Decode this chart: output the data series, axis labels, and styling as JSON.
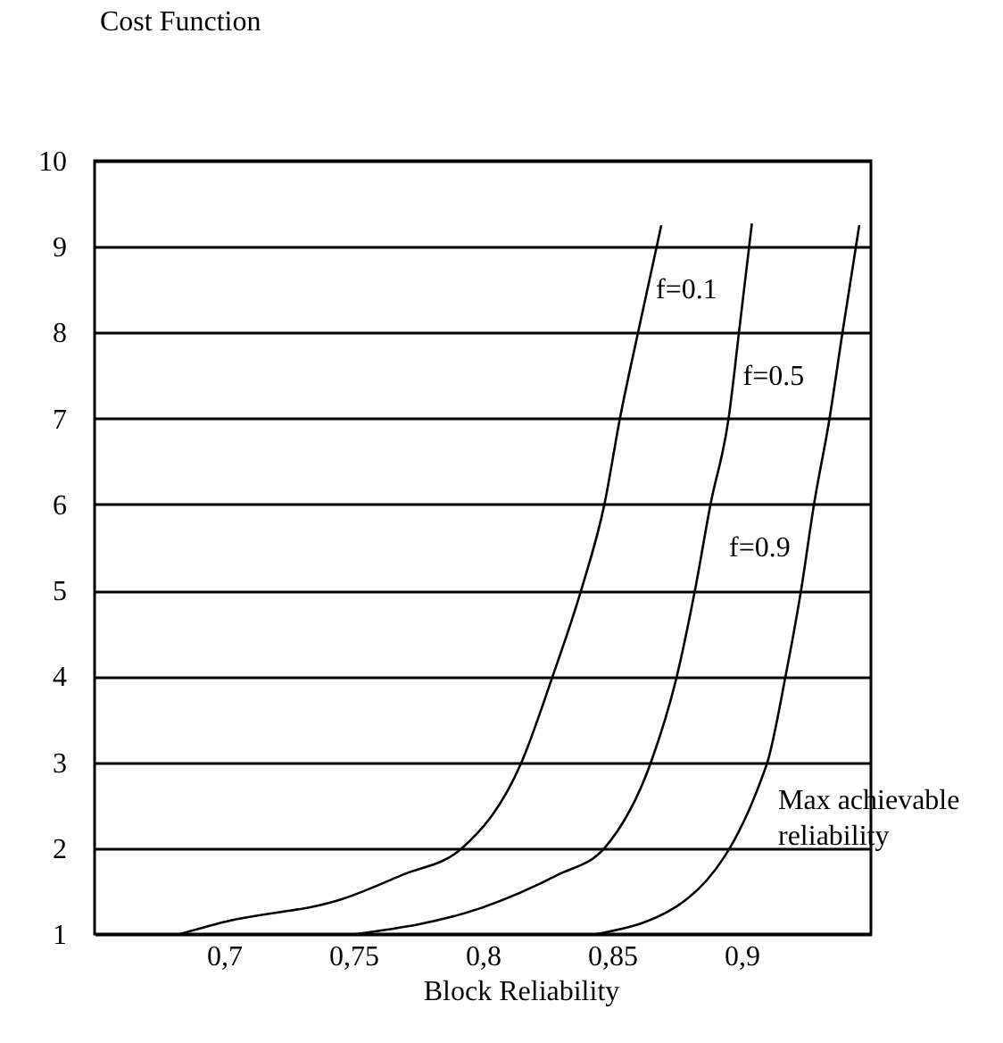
{
  "chart_data": {
    "type": "line",
    "xlabel": "Block Reliability",
    "ylabel": "Cost Function",
    "xlim": [
      0.65,
      0.95
    ],
    "ylim": [
      1,
      10
    ],
    "xticks": [
      {
        "value": 0.7,
        "label": "0,7"
      },
      {
        "value": 0.75,
        "label": "0,75"
      },
      {
        "value": 0.8,
        "label": "0,8"
      },
      {
        "value": 0.85,
        "label": "0,85"
      },
      {
        "value": 0.9,
        "label": "0,9"
      }
    ],
    "yticks": [
      1,
      2,
      3,
      4,
      5,
      6,
      7,
      8,
      9,
      10
    ],
    "grid": "y",
    "marker": "none",
    "line_style": "solid",
    "annotations": [
      "Max achievable reliability"
    ],
    "series": [
      {
        "name": "f=0.1",
        "color": "#000000",
        "x": [
          0.683,
          0.7,
          0.746,
          0.769,
          0.792,
          0.815,
          0.827,
          0.838,
          0.847,
          0.853,
          0.86,
          0.869
        ],
        "values": [
          1.0,
          1.14,
          1.41,
          1.69,
          2.0,
          3.0,
          4,
          5,
          6,
          7,
          8,
          9.25
        ]
      },
      {
        "name": "f=0.5",
        "color": "#000000",
        "x": [
          0.751,
          0.799,
          0.829,
          0.847,
          0.865,
          0.875,
          0.882,
          0.888,
          0.895,
          0.899,
          0.904
        ],
        "values": [
          1.0,
          1.3,
          1.69,
          2.0,
          3.0,
          4,
          5,
          6,
          7,
          8,
          9.27
        ]
      },
      {
        "name": "f=0.9",
        "color": "#000000",
        "x": [
          0.844,
          0.879,
          0.908,
          0.91,
          0.917,
          0.923,
          0.928,
          0.934,
          0.939,
          0.9455
        ],
        "values": [
          1.0,
          1.41,
          2.83,
          3,
          4,
          5,
          6,
          7,
          8,
          9.25
        ]
      }
    ]
  }
}
